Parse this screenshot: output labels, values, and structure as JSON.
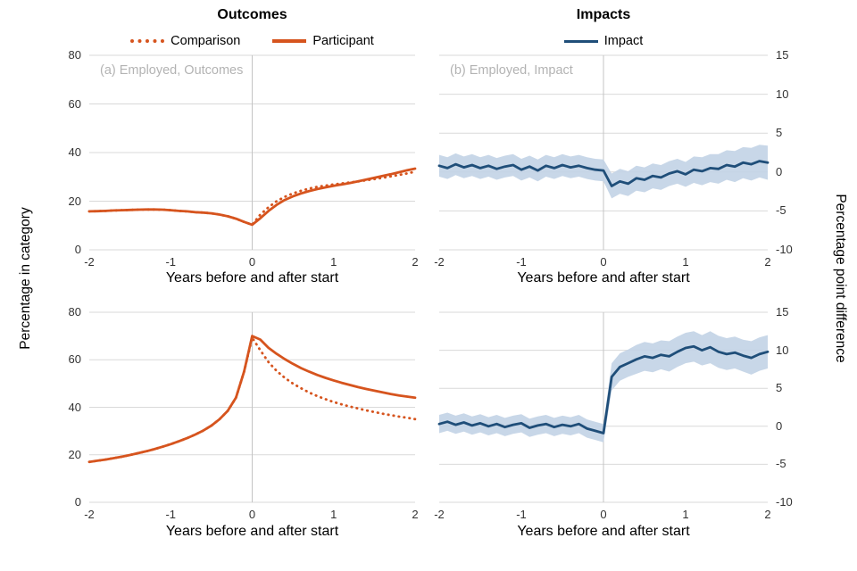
{
  "header": {
    "outcomes": "Outcomes",
    "impacts": "Impacts"
  },
  "legend": {
    "comparison": "Comparison",
    "participant": "Participant",
    "impact": "Impact"
  },
  "axes": {
    "xlabel": "Years before and after start",
    "left_ylabel": "Percentage in category",
    "right_ylabel": "Percentage point difference"
  },
  "panel_labels": {
    "a": "(a) Employed, Outcomes",
    "b": "(b) Employed, Impact"
  },
  "colors": {
    "orange": "#d6541e",
    "blue": "#1f4e79",
    "band": "#c2d3e5",
    "grid": "#d9d9d9",
    "zero_line": "#c4c4c4",
    "panel_label": "#b3b3b3"
  },
  "chart_data": [
    {
      "id": "a",
      "type": "line",
      "title": "(a) Employed, Outcomes",
      "xlim": [
        -2,
        2
      ],
      "ylim": [
        0,
        80
      ],
      "xticks": [
        -2,
        -1,
        0,
        1,
        2
      ],
      "yticks": [
        0,
        20,
        40,
        60,
        80
      ],
      "yticks_side": "left",
      "x": [
        -2,
        -1.9,
        -1.8,
        -1.7,
        -1.6,
        -1.5,
        -1.4,
        -1.3,
        -1.2,
        -1.1,
        -1,
        -0.9,
        -0.8,
        -0.7,
        -0.6,
        -0.5,
        -0.4,
        -0.3,
        -0.2,
        -0.1,
        0,
        0.1,
        0.2,
        0.3,
        0.4,
        0.5,
        0.6,
        0.7,
        0.8,
        0.9,
        1,
        1.1,
        1.2,
        1.3,
        1.4,
        1.5,
        1.6,
        1.7,
        1.8,
        1.9,
        2
      ],
      "series": [
        {
          "name": "Comparison",
          "color": "orange",
          "style": "dotted",
          "values": [
            15.8,
            15.9,
            16.0,
            16.2,
            16.3,
            16.4,
            16.5,
            16.6,
            16.6,
            16.5,
            16.3,
            16.0,
            15.8,
            15.5,
            15.3,
            15.0,
            14.5,
            13.8,
            12.8,
            11.5,
            10.3,
            14.5,
            17.5,
            20.0,
            21.8,
            23.2,
            24.3,
            25.2,
            25.9,
            26.4,
            26.9,
            27.3,
            27.7,
            28.1,
            28.6,
            29.1,
            29.6,
            30.2,
            30.8,
            31.4,
            32.1
          ]
        },
        {
          "name": "Participant",
          "color": "orange",
          "style": "solid",
          "values": [
            15.8,
            15.9,
            16.0,
            16.2,
            16.3,
            16.4,
            16.5,
            16.6,
            16.6,
            16.5,
            16.3,
            16.0,
            15.8,
            15.5,
            15.3,
            15.0,
            14.5,
            13.8,
            12.8,
            11.5,
            10.3,
            13.0,
            16.0,
            18.5,
            20.5,
            22.0,
            23.2,
            24.2,
            25.0,
            25.7,
            26.3,
            26.9,
            27.5,
            28.2,
            28.9,
            29.6,
            30.4,
            31.1,
            31.9,
            32.7,
            33.4
          ]
        }
      ]
    },
    {
      "id": "b",
      "type": "line",
      "title": "(b) Employed, Impact",
      "xlim": [
        -2,
        2
      ],
      "ylim": [
        -10,
        15
      ],
      "xticks": [
        -2,
        -1,
        0,
        1,
        2
      ],
      "yticks": [
        15,
        10,
        5,
        0,
        -5,
        -10
      ],
      "yticks_side": "right",
      "x": [
        -2,
        -1.9,
        -1.8,
        -1.7,
        -1.6,
        -1.5,
        -1.4,
        -1.3,
        -1.2,
        -1.1,
        -1,
        -0.9,
        -0.8,
        -0.7,
        -0.6,
        -0.5,
        -0.4,
        -0.3,
        -0.2,
        -0.1,
        0,
        0.1,
        0.2,
        0.3,
        0.4,
        0.5,
        0.6,
        0.7,
        0.8,
        0.9,
        1,
        1.1,
        1.2,
        1.3,
        1.4,
        1.5,
        1.6,
        1.7,
        1.8,
        1.9,
        2
      ],
      "series": [
        {
          "name": "Impact",
          "color": "blue",
          "style": "solid",
          "values": [
            0.8,
            0.5,
            1.0,
            0.6,
            0.9,
            0.5,
            0.8,
            0.4,
            0.7,
            0.9,
            0.3,
            0.7,
            0.2,
            0.8,
            0.5,
            0.9,
            0.6,
            0.8,
            0.5,
            0.3,
            0.2,
            -1.8,
            -1.2,
            -1.5,
            -0.8,
            -1.0,
            -0.5,
            -0.7,
            -0.2,
            0.1,
            -0.3,
            0.3,
            0.1,
            0.5,
            0.4,
            0.9,
            0.7,
            1.2,
            1.0,
            1.4,
            1.2
          ],
          "band_halfwidth": [
            1.4,
            1.4,
            1.4,
            1.4,
            1.4,
            1.4,
            1.4,
            1.4,
            1.4,
            1.4,
            1.4,
            1.4,
            1.4,
            1.4,
            1.4,
            1.4,
            1.4,
            1.4,
            1.4,
            1.4,
            1.4,
            1.6,
            1.6,
            1.6,
            1.6,
            1.6,
            1.6,
            1.6,
            1.6,
            1.6,
            1.6,
            1.7,
            1.8,
            1.8,
            1.9,
            1.9,
            2.0,
            2.0,
            2.1,
            2.1,
            2.2
          ]
        }
      ]
    },
    {
      "id": "c",
      "type": "line",
      "title": "",
      "xlim": [
        -2,
        2
      ],
      "ylim": [
        0,
        80
      ],
      "xticks": [
        -2,
        -1,
        0,
        1,
        2
      ],
      "yticks": [
        0,
        20,
        40,
        60,
        80
      ],
      "yticks_side": "left",
      "x": [
        -2,
        -1.9,
        -1.8,
        -1.7,
        -1.6,
        -1.5,
        -1.4,
        -1.3,
        -1.2,
        -1.1,
        -1,
        -0.9,
        -0.8,
        -0.7,
        -0.6,
        -0.5,
        -0.4,
        -0.3,
        -0.2,
        -0.1,
        0,
        0.1,
        0.2,
        0.3,
        0.4,
        0.5,
        0.6,
        0.7,
        0.8,
        0.9,
        1,
        1.1,
        1.2,
        1.3,
        1.4,
        1.5,
        1.6,
        1.7,
        1.8,
        1.9,
        2
      ],
      "series": [
        {
          "name": "Comparison",
          "color": "orange",
          "style": "dotted",
          "values": [
            17.0,
            17.5,
            18.0,
            18.6,
            19.2,
            19.9,
            20.7,
            21.5,
            22.4,
            23.4,
            24.5,
            25.7,
            27.0,
            28.5,
            30.2,
            32.3,
            35.0,
            38.5,
            44.0,
            55.0,
            69.3,
            64.0,
            59.0,
            55.3,
            52.4,
            50.0,
            48.0,
            46.2,
            44.7,
            43.4,
            42.2,
            41.2,
            40.3,
            39.5,
            38.7,
            38.0,
            37.3,
            36.7,
            36.1,
            35.6,
            35.0
          ]
        },
        {
          "name": "Participant",
          "color": "orange",
          "style": "solid",
          "values": [
            17.0,
            17.5,
            18.0,
            18.6,
            19.2,
            19.9,
            20.7,
            21.5,
            22.4,
            23.4,
            24.5,
            25.7,
            27.0,
            28.5,
            30.2,
            32.3,
            35.0,
            38.5,
            44.0,
            55.0,
            70.0,
            68.5,
            65.0,
            62.5,
            60.3,
            58.3,
            56.5,
            55.0,
            53.6,
            52.4,
            51.3,
            50.3,
            49.4,
            48.5,
            47.7,
            47.0,
            46.3,
            45.6,
            45.0,
            44.5,
            44.0
          ]
        }
      ]
    },
    {
      "id": "d",
      "type": "line",
      "title": "",
      "xlim": [
        -2,
        2
      ],
      "ylim": [
        -10,
        15
      ],
      "xticks": [
        -2,
        -1,
        0,
        1,
        2
      ],
      "yticks": [
        15,
        10,
        5,
        0,
        -5,
        -10
      ],
      "yticks_side": "right",
      "x": [
        -2,
        -1.9,
        -1.8,
        -1.7,
        -1.6,
        -1.5,
        -1.4,
        -1.3,
        -1.2,
        -1.1,
        -1,
        -0.9,
        -0.8,
        -0.7,
        -0.6,
        -0.5,
        -0.4,
        -0.3,
        -0.2,
        -0.1,
        0,
        0.1,
        0.2,
        0.3,
        0.4,
        0.5,
        0.6,
        0.7,
        0.8,
        0.9,
        1,
        1.1,
        1.2,
        1.3,
        1.4,
        1.5,
        1.6,
        1.7,
        1.8,
        1.9,
        2
      ],
      "series": [
        {
          "name": "Impact",
          "color": "blue",
          "style": "solid",
          "values": [
            0.3,
            0.6,
            0.2,
            0.5,
            0.1,
            0.4,
            0.0,
            0.3,
            -0.1,
            0.2,
            0.4,
            -0.2,
            0.1,
            0.3,
            -0.1,
            0.2,
            0.0,
            0.3,
            -0.3,
            -0.6,
            -0.9,
            6.5,
            7.8,
            8.3,
            8.8,
            9.2,
            9.0,
            9.4,
            9.2,
            9.8,
            10.3,
            10.5,
            10.0,
            10.4,
            9.8,
            9.5,
            9.7,
            9.3,
            9.0,
            9.5,
            9.8
          ],
          "band_halfwidth": [
            1.2,
            1.2,
            1.2,
            1.2,
            1.2,
            1.2,
            1.2,
            1.2,
            1.2,
            1.2,
            1.2,
            1.2,
            1.2,
            1.2,
            1.2,
            1.2,
            1.2,
            1.2,
            1.2,
            1.2,
            1.2,
            1.8,
            1.8,
            1.8,
            1.9,
            1.9,
            1.9,
            1.9,
            2.0,
            2.0,
            2.0,
            2.0,
            2.0,
            2.1,
            2.1,
            2.1,
            2.1,
            2.1,
            2.2,
            2.2,
            2.2
          ]
        }
      ]
    }
  ]
}
